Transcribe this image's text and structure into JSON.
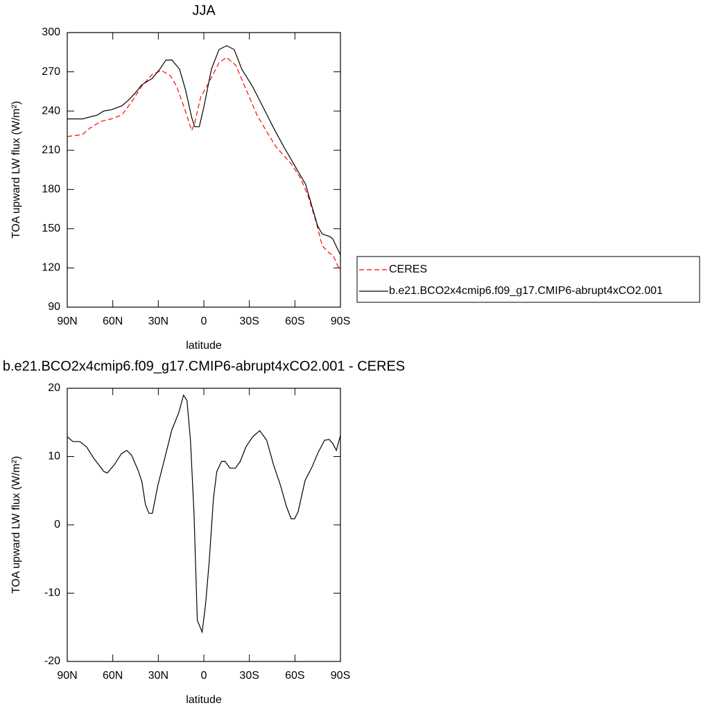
{
  "chart_data": [
    {
      "type": "line",
      "title": "JJA",
      "xlabel": "latitude",
      "ylabel": "TOA upward LW flux (W/m²)",
      "xlim": [
        90,
        -90
      ],
      "xticks": [
        {
          "value": 90,
          "label": "90N"
        },
        {
          "value": 60,
          "label": "60N"
        },
        {
          "value": 30,
          "label": "30N"
        },
        0,
        {
          "value": -30,
          "label": "30S"
        },
        {
          "value": -60,
          "label": "60S"
        },
        {
          "value": -90,
          "label": "90S"
        }
      ],
      "ylim": [
        90,
        300
      ],
      "yticks": [
        90,
        120,
        150,
        180,
        210,
        240,
        270,
        300
      ],
      "legend": "right",
      "series": [
        {
          "name": "CERES",
          "color": "#ff0000",
          "line_style": "dashed",
          "x": [
            90,
            80,
            75,
            68,
            61,
            54,
            47,
            41,
            34,
            28,
            22,
            18,
            13,
            8,
            6,
            2,
            -2,
            -10,
            -15,
            -21,
            -28,
            -35,
            -42,
            -48,
            -58,
            -64,
            -69,
            -74,
            -78,
            -83,
            -85,
            -90
          ],
          "values": [
            220.5,
            222,
            227,
            232,
            234,
            237,
            248,
            259,
            268,
            271,
            267,
            259,
            243,
            225,
            231,
            251,
            259,
            277,
            281,
            275,
            256,
            237,
            223,
            212,
            199,
            188,
            174,
            155,
            137,
            131,
            130,
            117
          ]
        },
        {
          "name": "b.e21.BCO2x4cmip6.f09_g17.CMIP6-abrupt4xCO2.001",
          "color": "#000000",
          "line_style": "solid",
          "x": [
            90,
            80,
            70,
            66,
            61,
            54,
            50,
            45,
            41,
            34,
            29,
            25,
            21,
            16,
            12,
            8,
            6,
            3,
            0,
            -5,
            -10,
            -15,
            -20,
            -25,
            -32,
            -39,
            -46,
            -53,
            -60,
            -67,
            -71,
            -75,
            -78,
            -83,
            -85,
            -90
          ],
          "values": [
            234,
            234,
            237,
            240,
            241,
            244,
            248,
            254,
            260,
            265,
            272,
            279,
            279,
            272,
            256,
            235,
            228,
            228,
            243,
            272,
            287,
            290,
            287,
            272,
            259,
            243,
            227,
            212,
            198,
            184,
            168,
            152,
            146,
            144,
            142,
            130
          ]
        }
      ]
    },
    {
      "type": "line",
      "title": "b.e21.BCO2x4cmip6.f09_g17.CMIP6-abrupt4xCO2.001 - CERES",
      "xlabel": "latitude",
      "ylabel": "TOA upward LW flux (W/m²)",
      "xlim": [
        90,
        -90
      ],
      "xticks": [
        {
          "value": 90,
          "label": "90N"
        },
        {
          "value": 60,
          "label": "60N"
        },
        {
          "value": 30,
          "label": "30N"
        },
        0,
        {
          "value": -30,
          "label": "30S"
        },
        {
          "value": -60,
          "label": "60S"
        },
        {
          "value": -90,
          "label": "90S"
        }
      ],
      "ylim": [
        -20,
        20
      ],
      "yticks": [
        -20,
        -10,
        0,
        10,
        20
      ],
      "series": [
        {
          "color": "#000000",
          "line_style": "solid",
          "x": [
            90,
            86.3,
            81.8,
            77.2,
            72.7,
            65.8,
            63.6,
            59,
            54.4,
            50.8,
            47.6,
            43,
            40.8,
            38.5,
            36.2,
            33.9,
            30.3,
            25.7,
            21.1,
            16.6,
            13.4,
            11.1,
            8.8,
            6.5,
            4.3,
            1.1,
            -1.2,
            -3.5,
            -6.3,
            -8.5,
            -11.7,
            -14,
            -17.2,
            -20.8,
            -24,
            -27.7,
            -32.2,
            -36.8,
            -41.4,
            -45.9,
            -50.5,
            -54.4,
            -57.5,
            -59.8,
            -62.1,
            -66.7,
            -71.3,
            -74.9,
            -79.5,
            -82.7,
            -85,
            -87.3,
            -90
          ],
          "values": [
            12.9,
            12.2,
            12.2,
            11.4,
            9.8,
            7.8,
            7.6,
            8.8,
            10.4,
            10.9,
            10.2,
            7.8,
            6.3,
            3.0,
            1.7,
            1.7,
            5.8,
            9.8,
            13.9,
            16.4,
            19.0,
            18.2,
            12.4,
            1.7,
            -14.0,
            -15.7,
            -11.5,
            -5.4,
            3.8,
            7.8,
            9.3,
            9.3,
            8.3,
            8.3,
            9.3,
            11.4,
            12.9,
            13.8,
            12.4,
            8.8,
            5.8,
            2.7,
            0.9,
            0.9,
            1.9,
            6.5,
            8.5,
            10.4,
            12.4,
            12.5,
            11.9,
            10.9,
            13.1
          ]
        }
      ]
    }
  ]
}
